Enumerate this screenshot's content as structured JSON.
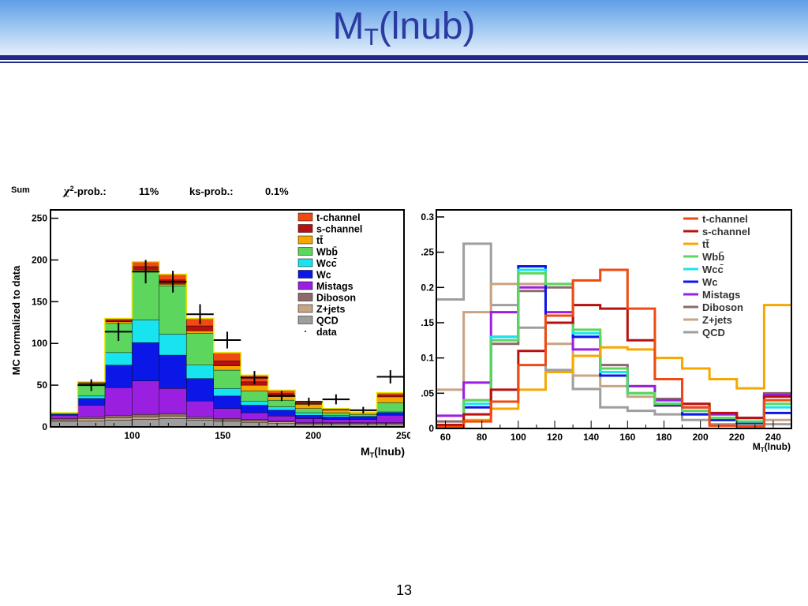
{
  "slide": {
    "title_main": "M",
    "title_sub": "T",
    "title_rest": "(lnub)",
    "page_number": "13"
  },
  "chart_data": [
    {
      "type": "bar",
      "stacked": true,
      "histogram_label": "Sum",
      "stats": {
        "chi2_label_sup": "2",
        "chi2_label_rest": "-prob.:",
        "chi2_value": "11%",
        "ks_label": "ks-prob.:",
        "ks_value": "0.1%"
      },
      "ylabel": "MC normalized to data",
      "xlabel_main": "M",
      "xlabel_sub": "T",
      "xlabel_rest": "(lnub)",
      "xlim": [
        55,
        250
      ],
      "ylim": [
        0,
        260
      ],
      "xticks": [
        100,
        150,
        200,
        250
      ],
      "yticks": [
        0,
        50,
        100,
        150,
        200,
        250
      ],
      "bin_edges": [
        55,
        70,
        85,
        100,
        115,
        130,
        145,
        160,
        175,
        190,
        205,
        220,
        235,
        250
      ],
      "series": [
        {
          "name": "QCD",
          "color": "#9e9e9e",
          "values": [
            6,
            7,
            8,
            9,
            10,
            8,
            6,
            5,
            4,
            3,
            3,
            3,
            3
          ]
        },
        {
          "name": "Z+jets",
          "color": "#c7a484",
          "values": [
            2,
            3,
            3,
            3,
            3,
            2,
            2,
            2,
            2,
            1,
            1,
            1,
            1
          ]
        },
        {
          "name": "Diboson",
          "color": "#8c6a6a",
          "values": [
            2,
            2,
            3,
            3,
            3,
            2,
            2,
            2,
            1,
            1,
            1,
            1,
            1
          ]
        },
        {
          "name": "Mistags",
          "color": "#9a1fe0",
          "values": [
            4,
            14,
            33,
            40,
            30,
            19,
            12,
            8,
            6,
            5,
            4,
            4,
            9
          ]
        },
        {
          "name": "Wc",
          "color": "#0b17e6",
          "values": [
            1,
            8,
            27,
            46,
            40,
            27,
            15,
            9,
            7,
            4,
            3,
            3,
            3
          ]
        },
        {
          "name": "Wcc",
          "color": "#18e4f0",
          "values": [
            1,
            3,
            15,
            27,
            25,
            16,
            9,
            5,
            4,
            3,
            2,
            1,
            1
          ]
        },
        {
          "name": "Wbb",
          "color": "#5cd65c",
          "values": [
            1,
            14,
            35,
            58,
            58,
            38,
            22,
            12,
            8,
            5,
            3,
            2,
            11
          ]
        },
        {
          "name": "tt̄",
          "color": "#f5a800",
          "values": [
            0,
            1,
            2,
            2,
            2,
            3,
            5,
            7,
            6,
            5,
            3,
            3,
            7
          ]
        },
        {
          "name": "s-channel",
          "color": "#b81010",
          "values": [
            0,
            1,
            2,
            4,
            5,
            6,
            6,
            4,
            2,
            1,
            1,
            0,
            2
          ]
        },
        {
          "name": "t-channel",
          "color": "#f04a12",
          "values": [
            0,
            1,
            2,
            6,
            7,
            9,
            10,
            8,
            4,
            2,
            1,
            0,
            3
          ]
        }
      ],
      "data_series": {
        "name": "data",
        "x": [
          77.5,
          92.5,
          107.5,
          122.5,
          137.5,
          152.5,
          167.5,
          182.5,
          197.5,
          212.5,
          227.5,
          242.5
        ],
        "y": [
          50,
          114,
          186,
          174,
          135,
          104,
          59,
          37,
          30,
          33,
          20,
          60
        ],
        "err": [
          7,
          11,
          14,
          13,
          12,
          10,
          8,
          6,
          5,
          6,
          4,
          8
        ]
      },
      "legend": [
        "t-channel",
        "s-channel",
        "tt̄",
        "Wbb̄",
        "Wcc̄",
        "Wc",
        "Mistags",
        "Diboson",
        "Z+jets",
        "QCD",
        "data"
      ],
      "legend_position": "top-right"
    },
    {
      "type": "line",
      "step": true,
      "xlabel_main": "M",
      "xlabel_sub": "T",
      "xlabel_rest": "(lnub)",
      "xlim": [
        55,
        250
      ],
      "ylim": [
        0,
        0.31
      ],
      "xticks": [
        60,
        80,
        100,
        120,
        140,
        160,
        180,
        200,
        220,
        240
      ],
      "yticks": [
        0,
        0.05,
        0.1,
        0.15,
        0.2,
        0.25,
        0.3
      ],
      "ytick_labels": [
        "0",
        ".05",
        "0.1",
        ".15",
        "0.2",
        ".25",
        "0.3"
      ],
      "bin_edges": [
        55,
        70,
        85,
        100,
        115,
        130,
        145,
        160,
        175,
        190,
        205,
        220,
        235,
        250
      ],
      "series": [
        {
          "name": "t-channel",
          "color": "#f04a12",
          "values": [
            0.002,
            0.01,
            0.038,
            0.09,
            0.16,
            0.21,
            0.225,
            0.17,
            0.07,
            0.03,
            0.004,
            0.003,
            0.04
          ]
        },
        {
          "name": "s-channel",
          "color": "#b81010",
          "values": [
            0.005,
            0.02,
            0.055,
            0.11,
            0.15,
            0.175,
            0.17,
            0.125,
            0.07,
            0.035,
            0.022,
            0.015,
            0.045
          ]
        },
        {
          "name": "tt̄",
          "color": "#f5a800",
          "values": [
            0.002,
            0.012,
            0.028,
            0.055,
            0.08,
            0.103,
            0.115,
            0.112,
            0.1,
            0.085,
            0.07,
            0.057,
            0.175
          ]
        },
        {
          "name": "Wbb̄",
          "color": "#5cd65c",
          "values": [
            0.003,
            0.04,
            0.125,
            0.22,
            0.205,
            0.14,
            0.085,
            0.05,
            0.035,
            0.025,
            0.015,
            0.01,
            0.035
          ]
        },
        {
          "name": "Wcc̄",
          "color": "#18e4f0",
          "values": [
            0.002,
            0.035,
            0.13,
            0.225,
            0.205,
            0.135,
            0.08,
            0.05,
            0.035,
            0.025,
            0.015,
            0.01,
            0.03
          ]
        },
        {
          "name": "Wc",
          "color": "#0b17e6",
          "values": [
            0.001,
            0.03,
            0.13,
            0.23,
            0.16,
            0.13,
            0.075,
            0.05,
            0.033,
            0.02,
            0.012,
            0.008,
            0.022
          ]
        },
        {
          "name": "Mistags",
          "color": "#9a1fe0",
          "values": [
            0.018,
            0.065,
            0.165,
            0.2,
            0.165,
            0.112,
            0.08,
            0.06,
            0.04,
            0.03,
            0.02,
            0.015,
            0.048
          ]
        },
        {
          "name": "Diboson",
          "color": "#8c6a6a",
          "values": [
            0.01,
            0.04,
            0.12,
            0.195,
            0.2,
            0.13,
            0.09,
            0.06,
            0.042,
            0.03,
            0.02,
            0.015,
            0.05
          ]
        },
        {
          "name": "Z+jets",
          "color": "#c7a484",
          "values": [
            0.055,
            0.165,
            0.205,
            0.205,
            0.12,
            0.075,
            0.06,
            0.045,
            0.032,
            0.02,
            0.012,
            0.01,
            0.012
          ]
        },
        {
          "name": "QCD",
          "color": "#9e9e9e",
          "values": [
            0.183,
            0.262,
            0.175,
            0.143,
            0.083,
            0.056,
            0.03,
            0.025,
            0.02,
            0.012,
            0.006,
            0.005,
            0.006
          ]
        }
      ],
      "legend": [
        "t-channel",
        "s-channel",
        "tt̄",
        "Wbb̄",
        "Wcc̄",
        "Wc",
        "Mistags",
        "Diboson",
        "Z+jets",
        "QCD"
      ],
      "legend_position": "top-right"
    }
  ]
}
